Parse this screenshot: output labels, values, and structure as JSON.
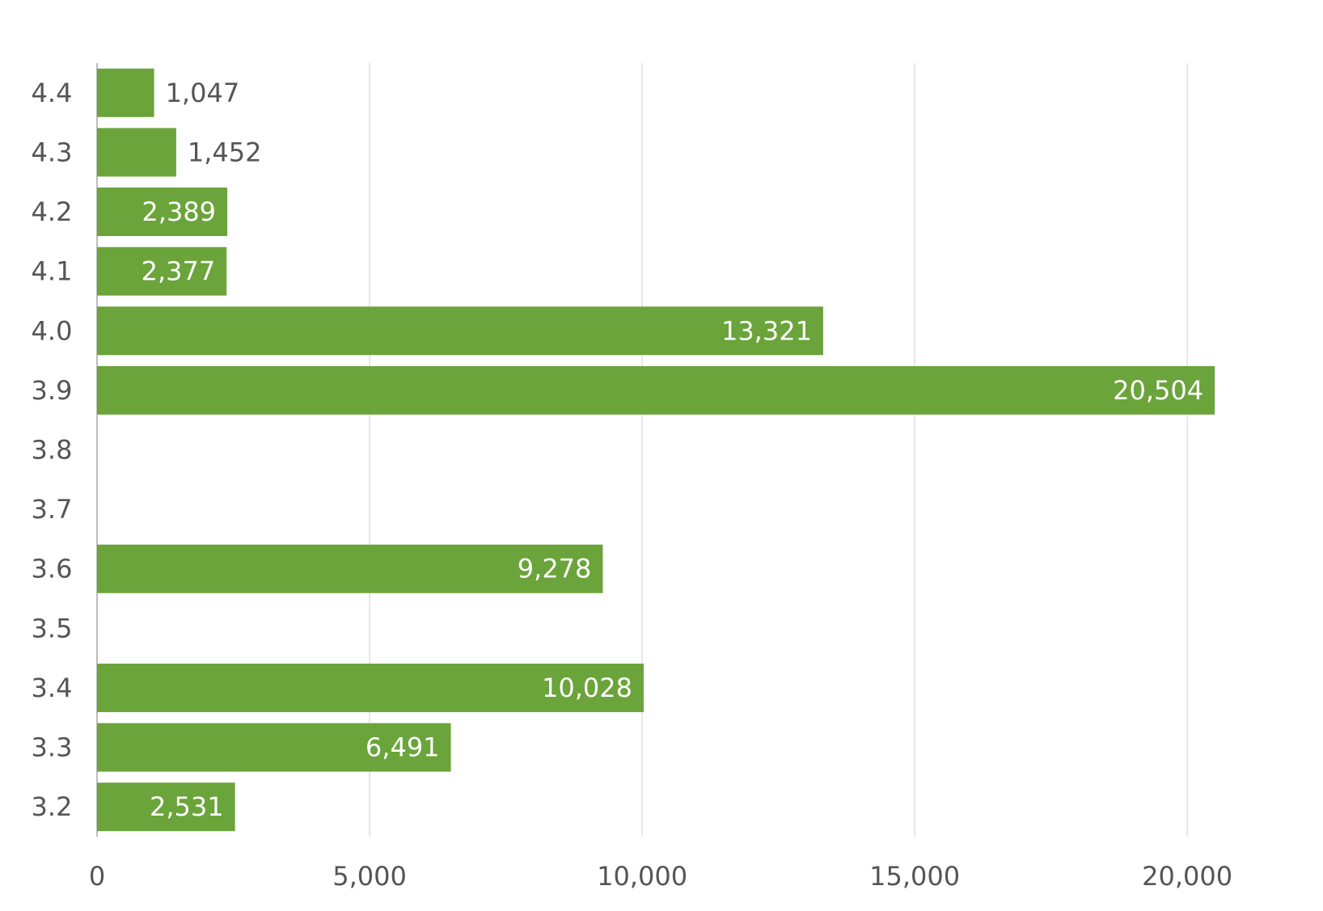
{
  "chart_data": {
    "type": "bar",
    "orientation": "horizontal",
    "title": "",
    "xlabel": "",
    "ylabel": "",
    "categories": [
      "4.4",
      "4.3",
      "4.2",
      "4.1",
      "4.0",
      "3.9",
      "3.8",
      "3.7",
      "3.6",
      "3.5",
      "3.4",
      "3.3",
      "3.2"
    ],
    "values": [
      1047,
      1452,
      2389,
      2377,
      13321,
      20504,
      0,
      0,
      9278,
      0,
      10028,
      6491,
      2531
    ],
    "value_labels": [
      "1,047",
      "1,452",
      "2,389",
      "2,377",
      "13,321",
      "20,504",
      "",
      "",
      "9,278",
      "",
      "10,028",
      "6,491",
      "2,531"
    ],
    "xlim": [
      0,
      20504
    ],
    "xticks": [
      0,
      5000,
      10000,
      15000,
      20000
    ],
    "xtick_labels": [
      "0",
      "5,000",
      "10,000",
      "15,000",
      "20,000"
    ],
    "grid": true,
    "legend": "none",
    "colors": {
      "bar": "#6aa43a",
      "grid": "#e6e6e6",
      "axis": "#bdbdbd",
      "label_inside": "#ffffff",
      "label_outside": "#555555"
    }
  }
}
